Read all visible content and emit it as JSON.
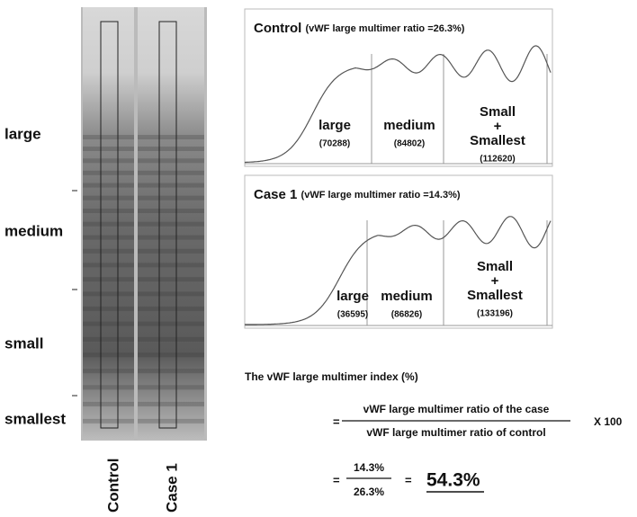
{
  "gel": {
    "row_labels": [
      "large",
      "medium",
      "small",
      "smallest"
    ],
    "lane_labels": [
      "Control",
      "Case 1"
    ]
  },
  "panels": [
    {
      "title": "Control",
      "subtitle": "(vWF large multimer ratio =26.3%)",
      "regions": [
        {
          "lines": [
            "large"
          ],
          "value": "(70288)"
        },
        {
          "lines": [
            "medium"
          ],
          "value": "(84802)"
        },
        {
          "lines": [
            "Small",
            "+",
            "Smallest"
          ],
          "value": "(112620)"
        }
      ]
    },
    {
      "title": "Case 1",
      "subtitle": "(vWF large multimer ratio =14.3%)",
      "regions": [
        {
          "lines": [
            "large"
          ],
          "value": "(36595)"
        },
        {
          "lines": [
            "medium"
          ],
          "value": "(86826)"
        },
        {
          "lines": [
            "Small",
            "+",
            "Smallest"
          ],
          "value": "(133196)"
        }
      ]
    }
  ],
  "formula": {
    "title": "The vWF large multimer index (%)",
    "equals_1": "=",
    "numerator": "vWF large multimer ratio  of the case",
    "denominator": "vWF large multimer ratio of control",
    "multiplier": "X 100",
    "equals_2": "=",
    "value_numerator": "14.3%",
    "value_denominator": "26.3%",
    "equals_3": "=",
    "result": "54.3%"
  }
}
